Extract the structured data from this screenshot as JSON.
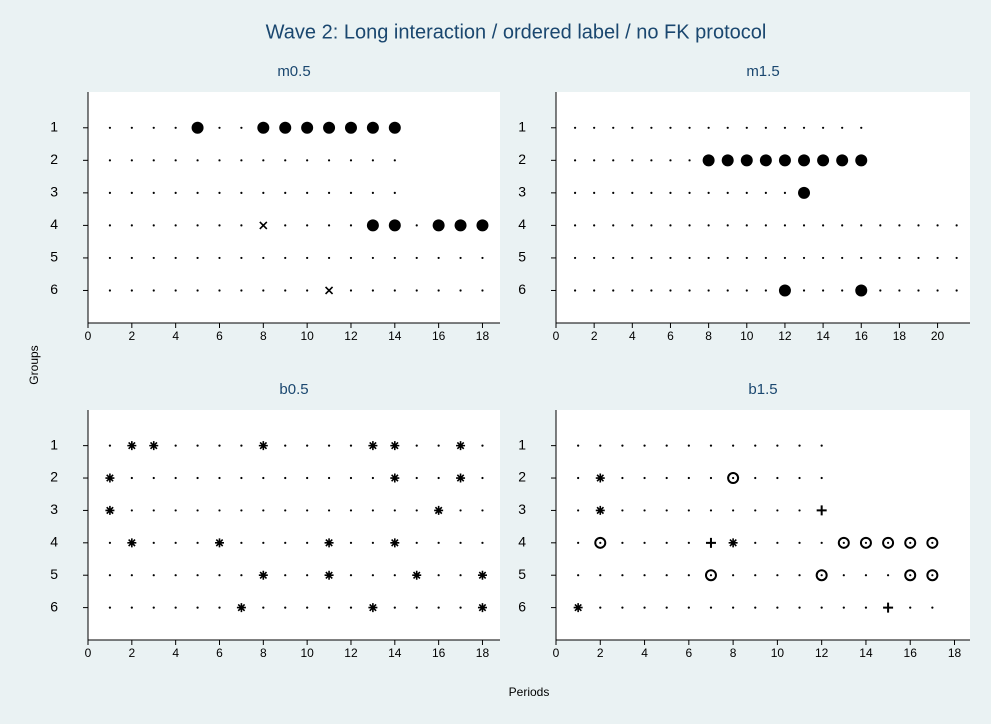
{
  "title": "Wave 2: Long interaction / ordered label / no FK protocol",
  "x_label": "Periods",
  "y_label": "Groups",
  "chart_data": [
    {
      "type": "scatter",
      "title": "m0.5",
      "xlim": [
        0,
        18.8
      ],
      "xticks": [
        0,
        2,
        4,
        6,
        8,
        10,
        12,
        14,
        16,
        18
      ],
      "ylim": [
        7,
        -0.1
      ],
      "yticks": [
        1,
        2,
        3,
        4,
        5,
        6
      ],
      "periods": [
        14,
        14,
        14,
        18,
        18,
        18
      ],
      "series": [
        {
          "marker": "circle",
          "color": "#000000",
          "x": [
            5,
            8,
            9,
            10,
            11,
            12,
            13,
            14,
            13,
            14,
            16,
            17,
            18
          ],
          "y": [
            1,
            1,
            1,
            1,
            1,
            1,
            1,
            1,
            4,
            4,
            4,
            4,
            4
          ]
        },
        {
          "marker": "x",
          "color": "#000000",
          "x": [
            8,
            11
          ],
          "y": [
            4,
            6
          ]
        }
      ]
    },
    {
      "type": "scatter",
      "title": "m1.5",
      "xlim": [
        0,
        21.7
      ],
      "xticks": [
        0,
        2,
        4,
        6,
        8,
        10,
        12,
        14,
        16,
        18,
        20
      ],
      "ylim": [
        7,
        -0.1
      ],
      "yticks": [
        1,
        2,
        3,
        4,
        5,
        6
      ],
      "periods": [
        16,
        16,
        13,
        21,
        21,
        21
      ],
      "series": [
        {
          "marker": "circle",
          "color": "#000000",
          "x": [
            8,
            9,
            10,
            11,
            12,
            13,
            14,
            15,
            16,
            13,
            12,
            16
          ],
          "y": [
            2,
            2,
            2,
            2,
            2,
            2,
            2,
            2,
            2,
            3,
            6,
            6
          ]
        }
      ]
    },
    {
      "type": "scatter",
      "title": "b0.5",
      "xlim": [
        0,
        18.8
      ],
      "xticks": [
        0,
        2,
        4,
        6,
        8,
        10,
        12,
        14,
        16,
        18
      ],
      "ylim": [
        7,
        -0.1
      ],
      "yticks": [
        1,
        2,
        3,
        4,
        5,
        6
      ],
      "periods": [
        18,
        18,
        18,
        18,
        18,
        18
      ],
      "series": [
        {
          "marker": "asterisk",
          "color": "#000000",
          "x": [
            2,
            3,
            8,
            13,
            14,
            17,
            1,
            14,
            17,
            1,
            16,
            2,
            6,
            11,
            14,
            8,
            11,
            15,
            18,
            7,
            13,
            18
          ],
          "y": [
            1,
            1,
            1,
            1,
            1,
            1,
            2,
            2,
            2,
            3,
            3,
            4,
            4,
            4,
            4,
            5,
            5,
            5,
            5,
            6,
            6,
            6
          ]
        }
      ]
    },
    {
      "type": "scatter",
      "title": "b1.5",
      "xlim": [
        0,
        18.7
      ],
      "xticks": [
        0,
        2,
        4,
        6,
        8,
        10,
        12,
        14,
        16,
        18
      ],
      "ylim": [
        7,
        -0.1
      ],
      "yticks": [
        1,
        2,
        3,
        4,
        5,
        6
      ],
      "periods": [
        12,
        12,
        12,
        17,
        17,
        17
      ],
      "series": [
        {
          "marker": "asterisk",
          "color": "#000000",
          "x": [
            2,
            2,
            8,
            1
          ],
          "y": [
            2,
            3,
            4,
            6
          ]
        },
        {
          "marker": "hollow",
          "color": "#000000",
          "x": [
            8,
            2,
            13,
            14,
            15,
            16,
            17,
            7,
            12,
            16,
            17
          ],
          "y": [
            2,
            4,
            4,
            4,
            4,
            4,
            4,
            5,
            5,
            5,
            5
          ]
        },
        {
          "marker": "plus",
          "color": "#000000",
          "x": [
            12,
            7,
            15
          ],
          "y": [
            3,
            4,
            6
          ]
        }
      ]
    }
  ]
}
